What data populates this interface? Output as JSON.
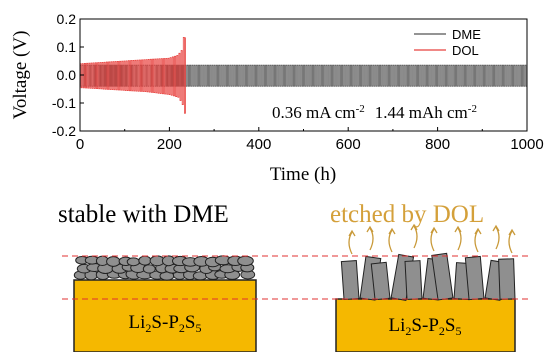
{
  "chart_data": {
    "type": "line",
    "xlabel": "Time (h)",
    "ylabel": "Voltage (V)",
    "xlim": [
      0,
      1000
    ],
    "ylim": [
      -0.2,
      0.2
    ],
    "x_ticks": [
      0,
      200,
      400,
      600,
      800,
      1000
    ],
    "y_ticks": [
      -0.2,
      -0.1,
      0.0,
      0.1,
      0.2
    ],
    "tick_labels_x": [
      "0",
      "200",
      "400",
      "600",
      "800",
      "1000"
    ],
    "tick_labels_y": [
      "-0.2",
      "-0.1",
      "0.0",
      "0.1",
      "0.2"
    ],
    "annotation": {
      "current_density": "0.36 mA cm",
      "current_exp": "-2",
      "capacity": "1.44 mAh cm",
      "capacity_exp": "-2"
    },
    "legend_position": "top-right",
    "series": [
      {
        "name": "DME",
        "color": "#555555",
        "x_range": [
          0,
          1000
        ],
        "cycles": 200,
        "envelope": {
          "x": [
            0,
            1000
          ],
          "upper": [
            0.035,
            0.035
          ],
          "lower": [
            -0.04,
            -0.04
          ]
        }
      },
      {
        "name": "DOL",
        "color": "#e8423f",
        "x_range": [
          0,
          236
        ],
        "cycles": 48,
        "envelope": {
          "x": [
            0,
            50,
            100,
            150,
            200,
            220,
            230,
            234,
            236
          ],
          "upper": [
            0.04,
            0.045,
            0.05,
            0.055,
            0.06,
            0.07,
            0.09,
            0.14,
            0.2
          ],
          "lower": [
            -0.045,
            -0.05,
            -0.055,
            -0.06,
            -0.07,
            -0.08,
            -0.11,
            -0.14,
            -0.2
          ]
        }
      }
    ]
  },
  "schematic": {
    "left": {
      "caption": "stable with DME",
      "substrate": {
        "prefix": "Li",
        "sub1": "2",
        "mid": "S-P",
        "sub2": "2",
        "end": "S",
        "sub3": "5"
      }
    },
    "right": {
      "caption": "etched by DOL",
      "substrate": {
        "prefix": "Li",
        "sub1": "2",
        "mid": "S-P",
        "sub2": "2",
        "end": "S",
        "sub3": "5"
      }
    },
    "colors": {
      "substrate": "#f5b800",
      "deposit": "#8f8f8f",
      "guide_line": "#e03030",
      "etch_arrow": "#c99a3a",
      "etch_text": "#d4a03a"
    }
  }
}
